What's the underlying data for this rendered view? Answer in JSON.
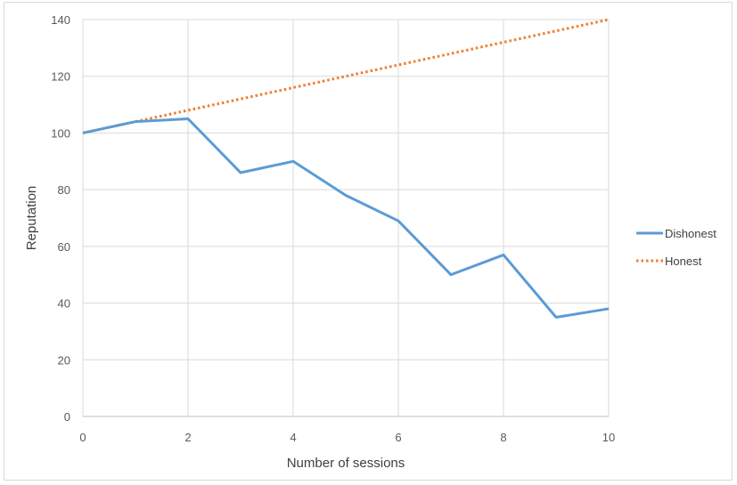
{
  "chart_data": {
    "type": "line",
    "title": "",
    "xlabel": "Number of sessions",
    "ylabel": "Reputation",
    "xlim": [
      0,
      10
    ],
    "ylim": [
      0,
      140
    ],
    "x_ticks": [
      0,
      2,
      4,
      6,
      8,
      10
    ],
    "y_ticks": [
      0,
      20,
      40,
      60,
      80,
      100,
      120,
      140
    ],
    "grid": "vertical and horizontal",
    "legend_position": "right",
    "series": [
      {
        "name": "Dishonest",
        "color": "#5b9bd5",
        "style": "solid",
        "x": [
          0,
          1,
          2,
          3,
          4,
          5,
          6,
          7,
          8,
          9,
          10
        ],
        "y": [
          100,
          104,
          105,
          86,
          90,
          78,
          69,
          50,
          57,
          35,
          38
        ]
      },
      {
        "name": "Honest",
        "color": "#ed7d31",
        "style": "dotted",
        "x": [
          0,
          1,
          2,
          3,
          4,
          5,
          6,
          7,
          8,
          9,
          10
        ],
        "y": [
          100,
          104,
          108,
          112,
          116,
          120,
          124,
          128,
          132,
          136,
          140
        ]
      }
    ]
  }
}
